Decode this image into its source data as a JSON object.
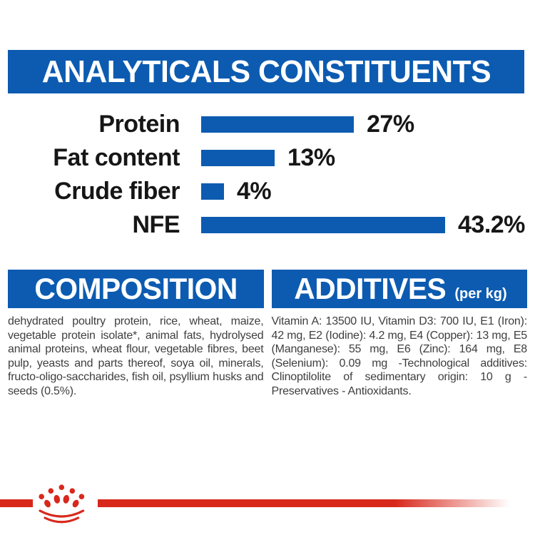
{
  "header": {
    "title": "ANALYTICALS CONSTITUENTS"
  },
  "chart_data": {
    "type": "bar",
    "orientation": "horizontal",
    "title": "ANALYTICALS CONSTITUENTS",
    "categories": [
      "Protein",
      "Fat content",
      "Crude fiber",
      "NFE"
    ],
    "values": [
      27,
      13,
      4,
      43.2
    ],
    "value_labels": [
      "27%",
      "13%",
      "4%",
      "43.2%"
    ],
    "unit": "%",
    "xlim": [
      0,
      45
    ],
    "grid": false,
    "legend": false,
    "bar_color": "#0c5bb1",
    "label_color": "#161616"
  },
  "composition": {
    "title": "COMPOSITION",
    "body": "dehydrated poultry protein, rice, wheat, maize, vegetable protein isolate*, animal fats, hydrolysed animal proteins, wheat flour, vegetable fibres, beet pulp, yeasts and parts thereof, soya oil, minerals, fructo-oligo-saccharides, fish oil, psyllium husks and seeds (0.5%)."
  },
  "additives": {
    "title": "ADDITIVES",
    "unit": "(per kg)",
    "body": "Vitamin A: 13500 IU, Vitamin D3: 700 IU, E1 (Iron): 42 mg, E2 (Iodine): 4.2 mg, E4 (Copper): 13 mg, E5 (Manganese): 55 mg, E6 (Zinc): 164 mg, E8 (Selenium): 0.09 mg -Technological additives: Clinoptilolite of sedimentary origin: 10 g - Preservatives - Antioxidants."
  },
  "footer": {
    "logo_icon": "crown-paw-logo",
    "brand_color": "#d8281c"
  },
  "colors": {
    "banner_blue": "#0c5bb1",
    "brand_red": "#d8281c",
    "chart_text": "#161616",
    "body_text": "#3e3e3e",
    "background": "#ffffff"
  }
}
